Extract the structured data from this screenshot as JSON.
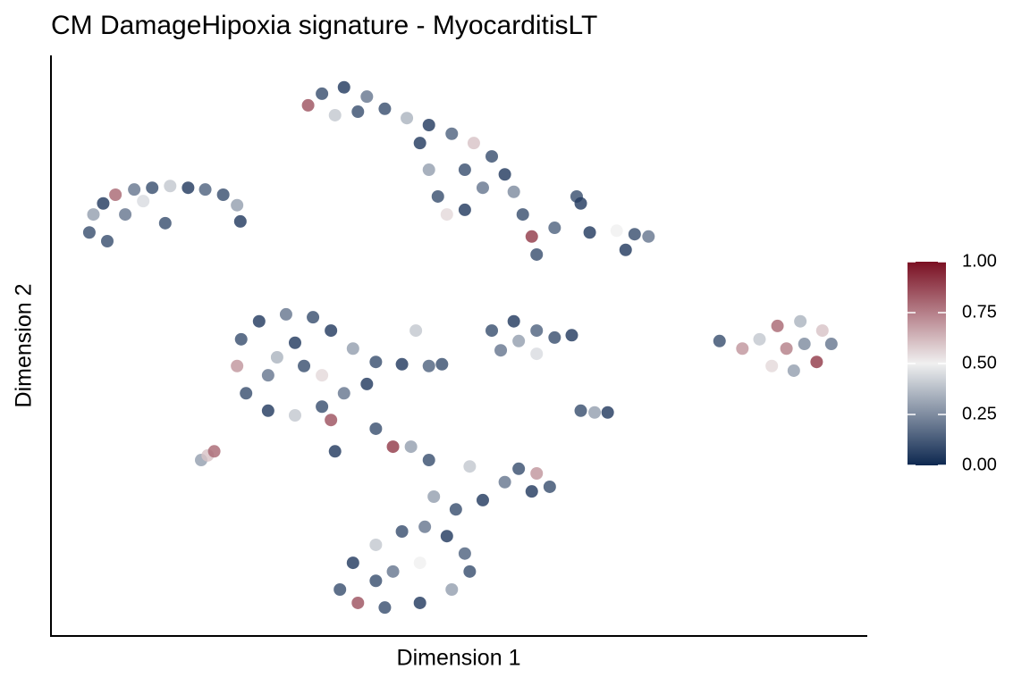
{
  "chart_data": {
    "type": "scatter",
    "title": "CM DamageHipoxia signature - MyocarditisLT",
    "x_label": "Dimension 1",
    "y_label": "Dimension 2",
    "xlim": [
      0,
      100
    ],
    "ylim": [
      0,
      100
    ],
    "x": [
      4.7,
      5.2,
      6.4,
      7.9,
      10.2,
      12.4,
      14.6,
      16.8,
      18.9,
      21.1,
      22.8,
      23.2,
      6.9,
      9.1,
      11.3,
      14.0,
      31.5,
      33.2,
      35.9,
      38.7,
      40.9,
      43.6,
      46.3,
      49.1,
      51.8,
      54.0,
      55.6,
      56.7,
      57.8,
      58.9,
      59.5,
      45.2,
      46.3,
      47.4,
      48.5,
      50.7,
      52.9,
      50.7,
      34.8,
      37.6,
      61.7,
      66.0,
      69.3,
      71.5,
      73.2,
      70.4,
      64.4,
      64.9,
      23.3,
      25.5,
      28.8,
      32.1,
      34.3,
      37.0,
      39.8,
      43.0,
      46.3,
      47.9,
      22.8,
      23.9,
      26.6,
      29.9,
      33.2,
      35.9,
      38.7,
      27.7,
      31.0,
      33.2,
      29.9,
      26.6,
      34.3,
      39.8,
      41.9,
      44.1,
      46.3,
      34.8,
      44.7,
      54.0,
      56.7,
      59.5,
      61.7,
      63.8,
      57.3,
      55.1,
      59.5,
      64.9,
      66.6,
      68.2,
      81.9,
      84.7,
      86.8,
      89.0,
      91.8,
      94.5,
      95.6,
      93.8,
      91.0,
      88.3,
      90.1,
      92.3,
      18.4,
      19.2,
      20.0,
      35.4,
      37.0,
      39.8,
      43.0,
      45.8,
      48.5,
      50.7,
      51.3,
      49.1,
      45.2,
      40.9,
      37.6,
      41.9,
      45.2,
      39.8,
      46.9,
      49.6,
      52.9,
      55.6,
      57.3,
      59.5,
      61.1,
      58.9,
      51.3
    ],
    "y": [
      69.5,
      72.6,
      74.5,
      76.0,
      76.9,
      77.2,
      77.5,
      77.2,
      76.9,
      76.0,
      74.2,
      71.4,
      68.0,
      72.6,
      74.9,
      71.1,
      91.4,
      93.4,
      94.5,
      92.9,
      90.8,
      89.2,
      88.0,
      86.5,
      84.9,
      82.6,
      79.5,
      76.5,
      72.6,
      68.8,
      65.7,
      84.9,
      80.3,
      75.7,
      72.6,
      73.4,
      77.2,
      80.3,
      89.7,
      90.3,
      70.3,
      69.5,
      69.8,
      69.2,
      68.8,
      66.5,
      75.7,
      74.5,
      51.1,
      54.2,
      55.4,
      54.9,
      52.6,
      49.5,
      47.2,
      46.8,
      46.5,
      46.8,
      46.5,
      41.8,
      38.8,
      38.0,
      39.5,
      41.8,
      43.4,
      48.0,
      46.5,
      44.9,
      50.5,
      44.9,
      37.2,
      35.7,
      32.6,
      32.6,
      30.3,
      31.8,
      52.6,
      52.6,
      54.2,
      52.6,
      51.4,
      51.8,
      50.8,
      49.2,
      48.6,
      38.8,
      38.5,
      38.5,
      50.8,
      49.5,
      51.1,
      53.4,
      54.2,
      52.6,
      50.3,
      47.2,
      45.7,
      46.5,
      49.5,
      50.3,
      30.3,
      31.1,
      31.8,
      8.0,
      12.6,
      15.7,
      18.0,
      18.8,
      17.2,
      14.2,
      11.1,
      8.0,
      5.7,
      4.9,
      5.7,
      11.1,
      12.6,
      9.5,
      24.0,
      21.8,
      23.4,
      26.5,
      28.8,
      28.0,
      25.7,
      24.9,
      29.2
    ],
    "values": [
      0.1,
      0.3,
      0.05,
      0.8,
      0.2,
      0.1,
      0.4,
      0.05,
      0.15,
      0.1,
      0.3,
      0.05,
      0.1,
      0.2,
      0.45,
      0.1,
      0.85,
      0.1,
      0.05,
      0.2,
      0.1,
      0.35,
      0.05,
      0.15,
      0.6,
      0.1,
      0.05,
      0.25,
      0.1,
      0.9,
      0.1,
      0.05,
      0.3,
      0.1,
      0.55,
      0.05,
      0.2,
      0.1,
      0.4,
      0.1,
      0.15,
      0.05,
      0.5,
      0.1,
      0.2,
      0.05,
      0.1,
      0.05,
      0.1,
      0.05,
      0.2,
      0.1,
      0.05,
      0.3,
      0.1,
      0.05,
      0.15,
      0.1,
      0.7,
      0.1,
      0.05,
      0.4,
      0.1,
      0.2,
      0.05,
      0.35,
      0.1,
      0.55,
      0.05,
      0.2,
      0.85,
      0.1,
      0.9,
      0.3,
      0.1,
      0.05,
      0.4,
      0.1,
      0.05,
      0.15,
      0.1,
      0.05,
      0.3,
      0.2,
      0.45,
      0.1,
      0.3,
      0.05,
      0.1,
      0.7,
      0.4,
      0.8,
      0.35,
      0.6,
      0.2,
      0.9,
      0.3,
      0.55,
      0.75,
      0.25,
      0.3,
      0.6,
      0.8,
      0.1,
      0.05,
      0.4,
      0.1,
      0.2,
      0.05,
      0.15,
      0.1,
      0.3,
      0.05,
      0.1,
      0.85,
      0.2,
      0.5,
      0.1,
      0.3,
      0.1,
      0.05,
      0.2,
      0.1,
      0.7,
      0.1,
      0.05,
      0.4
    ],
    "colorscale": [
      "#0d2850",
      "#f0f0f0",
      "#7a0f22"
    ],
    "clim": [
      0,
      1
    ],
    "cticks": [
      {
        "value": 0,
        "label": "0.00"
      },
      {
        "value": 0.25,
        "label": "0.25"
      },
      {
        "value": 0.5,
        "label": "0.50"
      },
      {
        "value": 0.75,
        "label": "0.75"
      },
      {
        "value": 1,
        "label": "1.00"
      }
    ]
  }
}
